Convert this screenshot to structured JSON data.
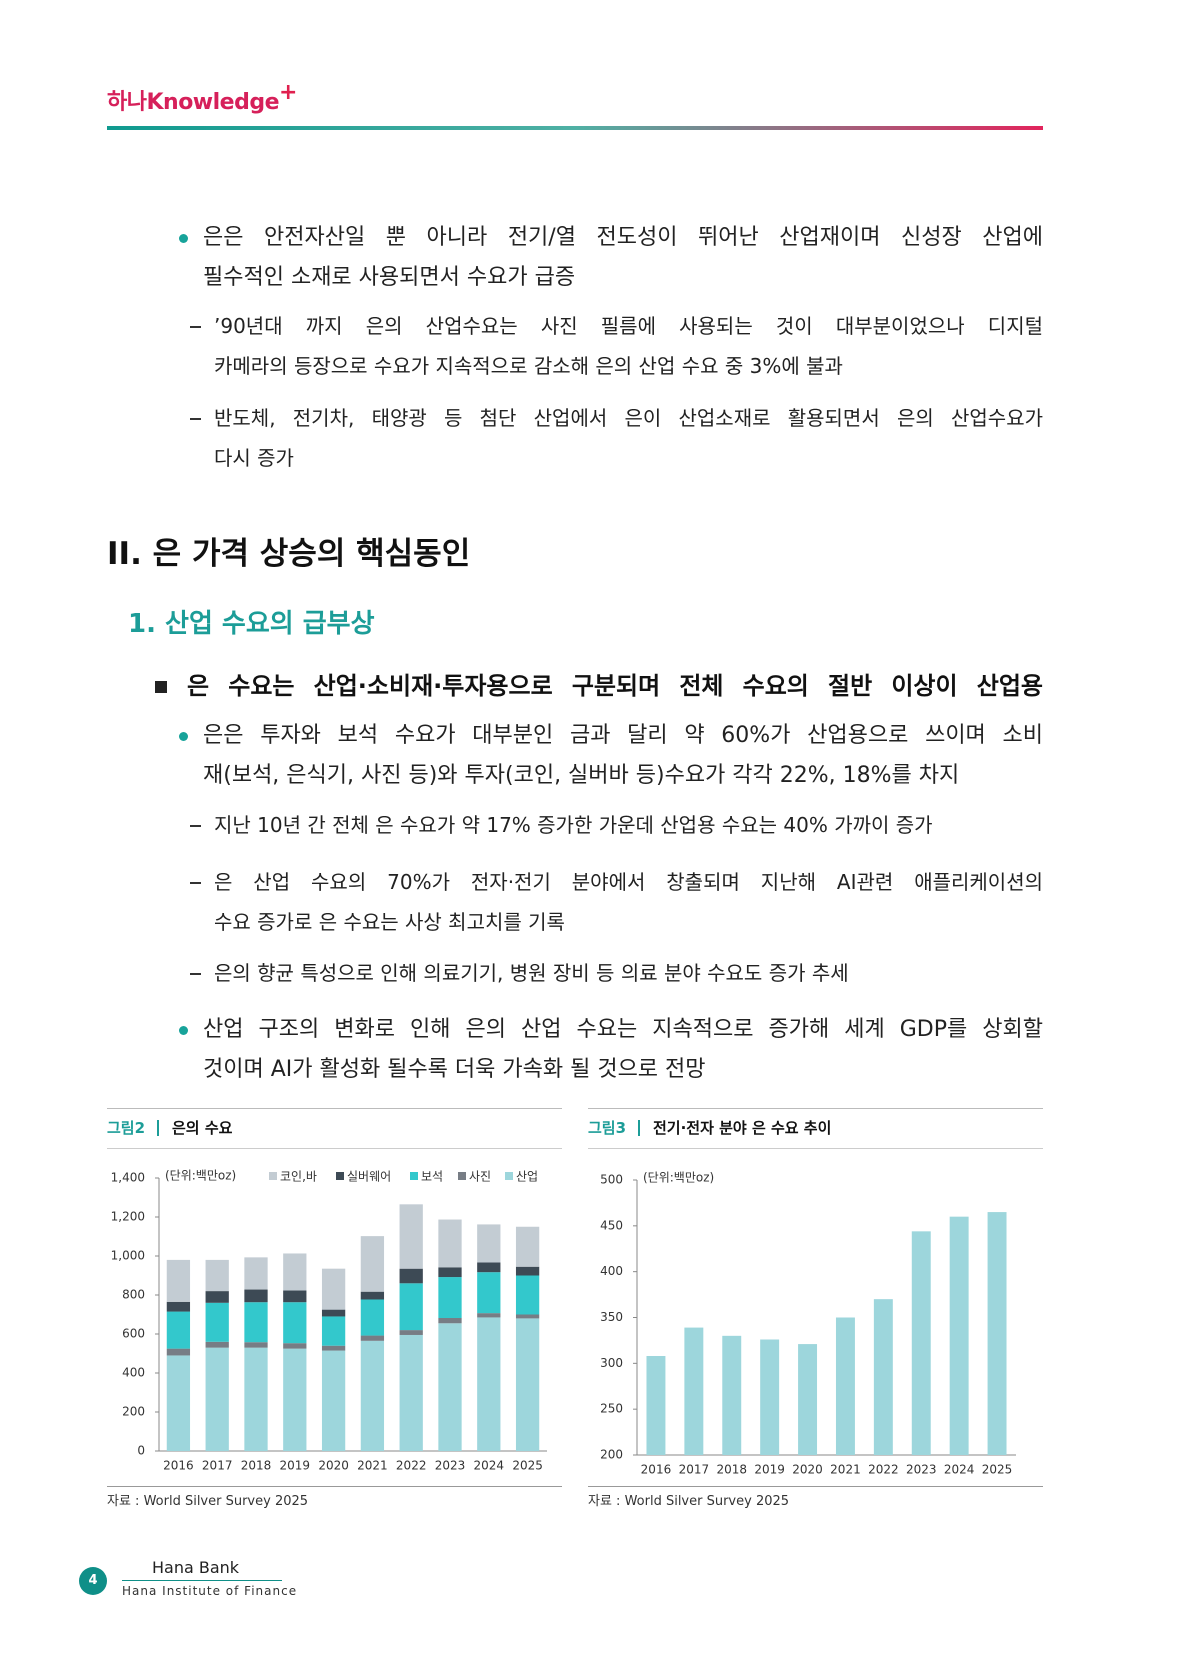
{
  "header": {
    "logo": "하나Knowledge",
    "logo_plus": "+"
  },
  "body": [
    {
      "kind": "dot",
      "lines": [
        "은은 안전자산일 뿐 아니라 전기/열 전도성이 뛰어난 산업재이며 신성장 산업에",
        "필수적인 소재로 사용되면서 수요가 급증"
      ]
    },
    {
      "kind": "dash",
      "lines": [
        "’90년대 까지 은의 산업수요는 사진 필름에 사용되는 것이 대부분이었으나 디지털",
        "카메라의 등장으로 수요가 지속적으로 감소해 은의 산업 수요 중 3%에 불과"
      ]
    },
    {
      "kind": "dash",
      "lines": [
        "반도체, 전기차, 태양광 등 첨단 산업에서 은이 산업소재로 활용되면서 은의 산업수요가",
        "다시 증가"
      ]
    },
    {
      "kind": "h2",
      "lines": [
        "II. 은 가격 상승의 핵심동인"
      ]
    },
    {
      "kind": "h3",
      "lines": [
        "1. 산업 수요의 급부상"
      ]
    },
    {
      "kind": "square",
      "lines": [
        "은 수요는 산업·소비재·투자용으로 구분되며 전체 수요의 절반 이상이 산업용"
      ]
    },
    {
      "kind": "dot",
      "lines": [
        "은은 투자와 보석 수요가 대부분인 금과 달리 약 60%가 산업용으로 쓰이며 소비",
        "재(보석, 은식기, 사진 등)와 투자(코인, 실버바 등)수요가 각각 22%, 18%를 차지"
      ]
    },
    {
      "kind": "dash",
      "lines": [
        "지난 10년 간 전체 은 수요가 약 17% 증가한 가운데 산업용 수요는 40% 가까이 증가"
      ]
    },
    {
      "kind": "dash",
      "lines": [
        "은 산업 수요의 70%가 전자·전기 분야에서 창출되며 지난해 AI관련 애플리케이션의",
        "수요 증가로 은 수요는 사상 최고치를 기록"
      ]
    },
    {
      "kind": "dash",
      "lines": [
        "은의 향균 특성으로 인해 의료기기, 병원 장비 등 의료 분야 수요도 증가 추세"
      ]
    },
    {
      "kind": "dot",
      "lines": [
        "산업 구조의 변화로 인해 은의 산업 수요는 지속적으로 증가해 세계 GDP를 상회할",
        "것이며 AI가 활성화 될수록 더욱 가속화 될 것으로 전망"
      ]
    }
  ],
  "figures": [
    {
      "label": "그림2",
      "title": "은의 수요",
      "source": "자료 : World Silver Survey 2025",
      "chart": {
        "type": "bar",
        "stacked": true,
        "unit": "(단위:백만oz)",
        "categories": [
          "2016",
          "2017",
          "2018",
          "2019",
          "2020",
          "2021",
          "2022",
          "2023",
          "2024",
          "2025"
        ],
        "series": [
          {
            "name": "코인,바",
            "color": "#c3ccd3",
            "values": [
              215,
              160,
              165,
              190,
              210,
              285,
              330,
              245,
              195,
              205
            ]
          },
          {
            "name": "실버웨어",
            "color": "#3d4a55",
            "values": [
              50,
              60,
              65,
              60,
              35,
              40,
              75,
              50,
              50,
              45
            ]
          },
          {
            "name": "보석",
            "color": "#33c8cc",
            "values": [
              190,
              200,
              205,
              210,
              150,
              185,
              240,
              210,
              210,
              200
            ]
          },
          {
            "name": "사진",
            "color": "#777d85",
            "values": [
              35,
              30,
              28,
              28,
              25,
              27,
              25,
              27,
              22,
              20
            ]
          },
          {
            "name": "산업",
            "color": "#9dd6dc",
            "values": [
              490,
              530,
              530,
              525,
              515,
              565,
              595,
              655,
              685,
              680
            ]
          }
        ],
        "ylim": [
          0,
          1400
        ],
        "yticks": [
          0,
          200,
          400,
          600,
          800,
          {
            "value": 1000,
            "label": "1,000"
          },
          {
            "value": 1200,
            "label": "1,200"
          },
          {
            "value": 1400,
            "label": "1,400"
          }
        ]
      }
    },
    {
      "label": "그림3",
      "title": "전기·전자 분야 은 수요 추이",
      "source": "자료 : World Silver Survey 2025",
      "chart": {
        "type": "bar",
        "unit": "(단위:백만oz)",
        "color": "#9dd6dc",
        "categories": [
          "2016",
          "2017",
          "2018",
          "2019",
          "2020",
          "2021",
          "2022",
          "2023",
          "2024",
          "2025"
        ],
        "values": [
          308,
          339,
          330,
          326,
          321,
          350,
          370,
          444,
          460,
          465
        ],
        "ylim": [
          200,
          500
        ],
        "yticks": [
          200,
          250,
          300,
          350,
          400,
          450,
          500
        ]
      }
    }
  ],
  "footer": {
    "page": "4",
    "org": "Hana Bank",
    "institute": "Hana Institute of Finance"
  }
}
